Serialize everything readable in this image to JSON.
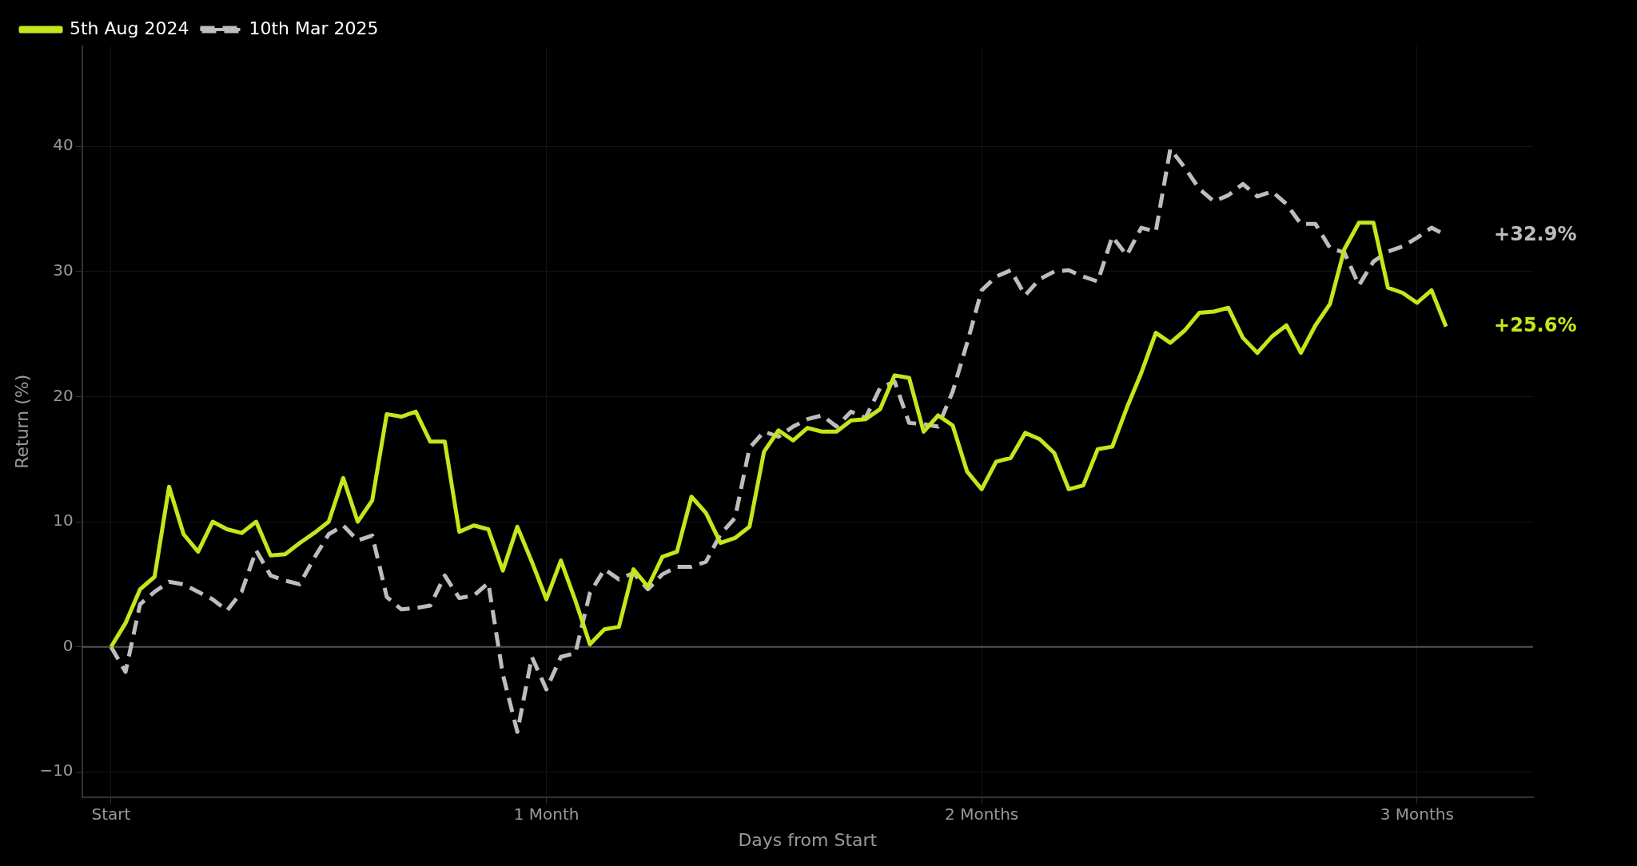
{
  "chart_data": {
    "type": "line",
    "xlabel": "Days from Start",
    "ylabel": "Return (%)",
    "categories": [
      "Start",
      null,
      null,
      null,
      null,
      null,
      null,
      null,
      null,
      null,
      null,
      null,
      null,
      null,
      null,
      null,
      null,
      null,
      null,
      null,
      null,
      null,
      null,
      null,
      null,
      null,
      null,
      null,
      null,
      null,
      "1 Month",
      null,
      null,
      null,
      null,
      null,
      null,
      null,
      null,
      null,
      null,
      null,
      null,
      null,
      null,
      null,
      null,
      null,
      null,
      null,
      null,
      null,
      null,
      null,
      null,
      null,
      null,
      null,
      null,
      null,
      "2 Months",
      null,
      null,
      null,
      null,
      null,
      null,
      null,
      null,
      null,
      null,
      null,
      null,
      null,
      null,
      null,
      null,
      null,
      null,
      null,
      null,
      null,
      null,
      null,
      null,
      null,
      null,
      null,
      null,
      null,
      "3 Months",
      null,
      null
    ],
    "series": [
      {
        "name": "5th Aug 2024",
        "color": "#c5e61c",
        "line_style": "solid",
        "values": [
          0,
          1.9,
          4.6,
          5.6,
          12.8,
          9.0,
          7.6,
          10.0,
          9.4,
          9.1,
          10.0,
          7.3,
          7.4,
          8.3,
          9.1,
          10.0,
          13.5,
          10.0,
          11.7,
          18.6,
          18.4,
          18.8,
          16.4,
          16.4,
          9.2,
          9.7,
          9.4,
          6.1,
          9.6,
          6.8,
          3.8,
          6.9,
          3.7,
          0.2,
          1.4,
          1.6,
          6.2,
          4.8,
          7.2,
          7.6,
          12.0,
          10.7,
          8.3,
          8.7,
          9.6,
          15.6,
          17.3,
          16.5,
          17.5,
          17.2,
          17.2,
          18.1,
          18.2,
          19.0,
          21.7,
          21.5,
          17.2,
          18.5,
          17.7,
          14.0,
          12.6,
          14.8,
          15.1,
          17.1,
          16.6,
          15.5,
          12.6,
          12.9,
          15.8,
          16.0,
          19.1,
          21.9,
          25.1,
          24.3,
          25.3,
          26.7,
          26.8,
          27.1,
          24.7,
          23.5,
          24.8,
          25.7,
          23.5,
          25.7,
          27.4,
          31.8,
          33.9,
          33.9,
          28.7,
          28.3,
          27.5,
          28.5,
          25.6
        ]
      },
      {
        "name": "10th Mar 2025",
        "color": "#bdbdbd",
        "line_style": "dashed",
        "values": [
          0,
          -2.0,
          3.4,
          4.4,
          5.2,
          5.0,
          4.4,
          3.8,
          2.9,
          4.4,
          7.7,
          5.7,
          5.3,
          5.0,
          7.1,
          9.0,
          9.7,
          8.5,
          8.9,
          4.0,
          3.0,
          3.1,
          3.3,
          5.7,
          3.9,
          4.1,
          5.1,
          -2.2,
          -6.8,
          -0.8,
          -3.4,
          -0.8,
          -0.5,
          4.3,
          6.2,
          5.4,
          5.9,
          4.6,
          5.8,
          6.4,
          6.4,
          6.8,
          9.0,
          10.3,
          15.9,
          17.2,
          16.8,
          17.6,
          18.2,
          18.5,
          17.6,
          18.8,
          18.3,
          20.7,
          21.2,
          17.9,
          17.8,
          17.6,
          20.4,
          24.3,
          28.5,
          29.6,
          30.1,
          28.1,
          29.4,
          30.0,
          30.1,
          29.6,
          29.2,
          32.8,
          31.3,
          33.5,
          33.2,
          39.8,
          38.3,
          36.6,
          35.6,
          36.1,
          37.0,
          36.0,
          36.4,
          35.4,
          33.8,
          33.8,
          31.9,
          31.5,
          28.9,
          30.8,
          31.6,
          32.0,
          32.7,
          33.5,
          32.9
        ]
      }
    ],
    "ylim": [
      -12,
      48
    ],
    "yticks": [
      {
        "value": -10,
        "label": "−10"
      },
      0,
      10,
      20,
      30,
      40
    ],
    "ref_lines": [
      {
        "axis": "y",
        "value": 0,
        "color": "#555555"
      }
    ],
    "annotations": [
      "+25.6%",
      "+32.9%"
    ],
    "grid": true,
    "legend": "top left",
    "marker": "none"
  }
}
